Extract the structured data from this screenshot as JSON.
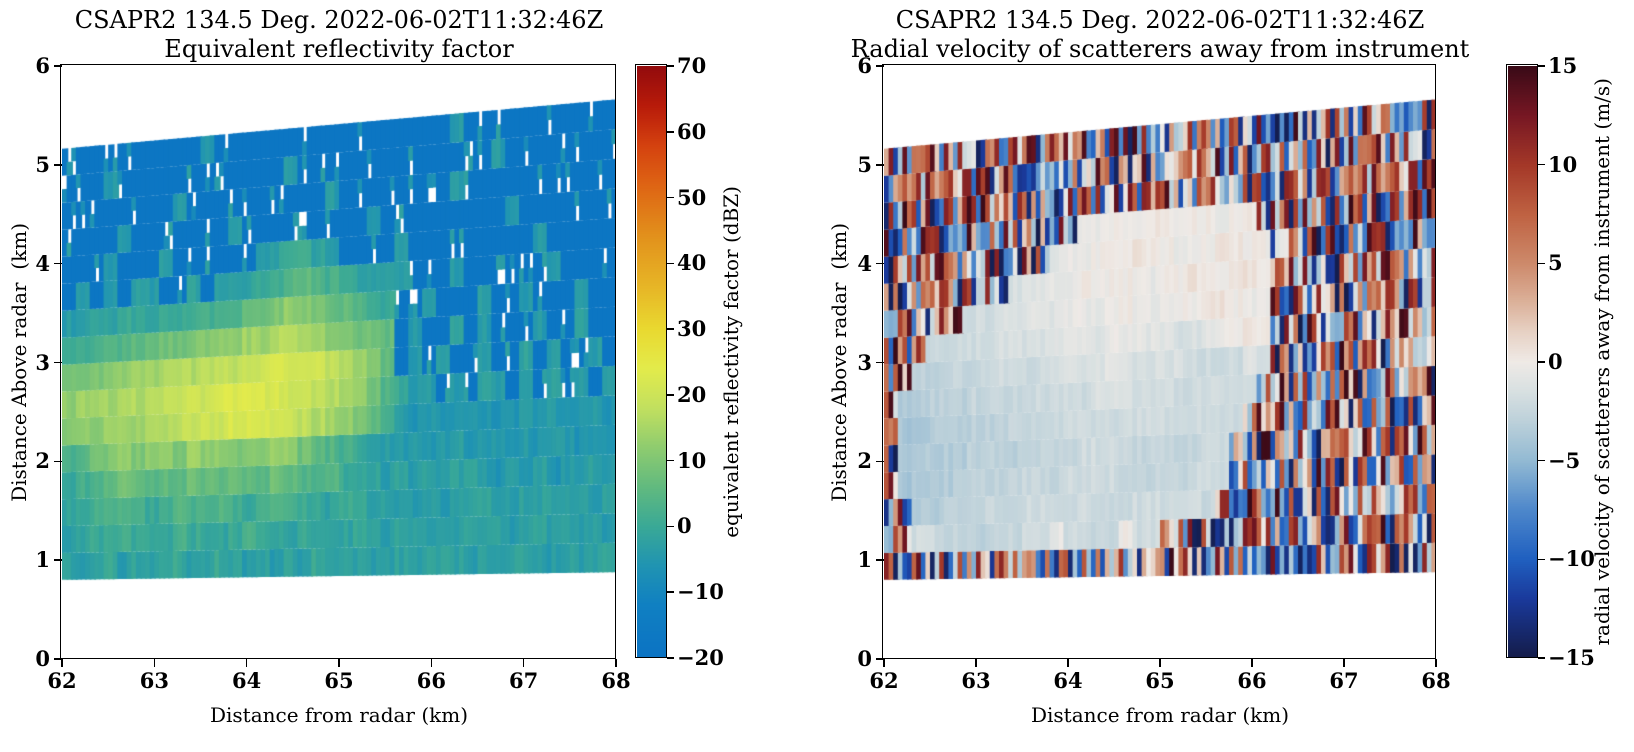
{
  "page": {
    "background": "#ffffff"
  },
  "chart_data": [
    {
      "type": "heatmap",
      "id": "reflectivity",
      "title": "CSAPR2 134.5 Deg. 2022-06-02T11:32:46Z",
      "subtitle": "Equivalent reflectivity factor",
      "xlabel": "Distance from radar (km)",
      "ylabel": "Distance Above radar  (km)",
      "xlim": [
        62,
        68
      ],
      "ylim": [
        0,
        6
      ],
      "x_ticks": [
        62,
        63,
        64,
        65,
        66,
        67,
        68
      ],
      "y_ticks": [
        0,
        1,
        2,
        3,
        4,
        5,
        6
      ],
      "grid": false,
      "colorbar": {
        "label": "equivalent reflectivity factor (dBZ)",
        "ticks": [
          70,
          60,
          50,
          40,
          30,
          20,
          10,
          0,
          -10,
          -20
        ],
        "vmin": -20,
        "vmax": 70
      },
      "colormap_stops": [
        [
          -20,
          "#0b73c3"
        ],
        [
          -12,
          "#1080c2"
        ],
        [
          -6,
          "#2094b2"
        ],
        [
          0,
          "#3aa996"
        ],
        [
          6,
          "#62ba7f"
        ],
        [
          12,
          "#8fcc6f"
        ],
        [
          18,
          "#c2e05f"
        ],
        [
          24,
          "#e3eb4b"
        ],
        [
          30,
          "#e9d930"
        ],
        [
          36,
          "#e7b827"
        ],
        [
          44,
          "#e2921c"
        ],
        [
          52,
          "#de6414"
        ],
        [
          58,
          "#d4420f"
        ],
        [
          64,
          "#b81b0a"
        ],
        [
          70,
          "#930b0d"
        ]
      ],
      "geometry": {
        "elevation_deg": [
          0.74,
          4.76
        ],
        "range_km": [
          62,
          68
        ],
        "gate_km": 0.05,
        "columns": 40,
        "bands": 16
      },
      "rows_bottom_to_top": true,
      "background_value": -18,
      "speckle": {
        "probability": 0.13,
        "range": [
          -9,
          -2
        ]
      },
      "jitter": 1.8,
      "value_map": {
        "0": -18,
        "a": -8,
        "b": -6,
        "c": -4,
        "d": -2,
        "e": 0,
        "f": 2,
        "g": 4,
        "h": 6,
        "i": 8,
        "j": 10,
        "k": 12,
        "l": 14,
        "m": 16,
        "n": 18,
        "o": 20,
        "p": 22,
        "q": 24
      },
      "field": [
        "dcdecdddecdedcdcdcedddccdcdddcdcddccdcdd",
        "cdeefeedfeedefeedeeddedcddcdcdddcddcdcdc",
        "deffgfefgffgfefgfeedeeddccdcdddccdddcdcd",
        "efghihghhihhihgihgfgeedcdcdcddcbdcdbccdc",
        "fgijkjkljlkkjkjlkihgfedcccbcdbccbcbccbcb",
        "jkklllmmnnoopppoonmlkjhfcbcbbcbbbcbcbbcb",
        "klllmmmnnooppqppoonmlkigecc0c0dc0c0d0c0d",
        "ijjkkllmmmnnnooppoonmljh0c0d00c00d0c00c0",
        "effgghhiijjkkllmnmlkjiih0c00d0c000c00d00",
        "ccddeedeefffghijkjihhgfe00c000d00c000c00",
        "0c0c0dc00d0cddefghgfedcdc000c000000c0000",
        "000c000c000000cdeedc0000c000000000c00000",
        "0000c0000000c000000000c000000000c0000000",
        "00000000c0000000000c00000000c00000000000",
        "000c000000000000c00000000000000c00000000",
        "0000000000c00000000000000000c00000000000"
      ]
    },
    {
      "type": "heatmap",
      "id": "radial_velocity",
      "title": "CSAPR2 134.5 Deg. 2022-06-02T11:32:46Z",
      "subtitle": "Radial velocity of scatterers away from instrument",
      "xlabel": "Distance from radar (km)",
      "ylabel": "Distance Above radar  (km)",
      "xlim": [
        62,
        68
      ],
      "ylim": [
        0,
        6
      ],
      "x_ticks": [
        62,
        63,
        64,
        65,
        66,
        67,
        68
      ],
      "y_ticks": [
        0,
        1,
        2,
        3,
        4,
        5,
        6
      ],
      "grid": false,
      "colorbar": {
        "label": "radial velocity of scatterers away from instrument (m/s)",
        "ticks": [
          15,
          10,
          5,
          0,
          -5,
          -10,
          -15
        ],
        "vmin": -15,
        "vmax": 15
      },
      "colormap_stops": [
        [
          -15,
          "#141c4a"
        ],
        [
          -12,
          "#1a3a9c"
        ],
        [
          -10,
          "#2060c0"
        ],
        [
          -7.5,
          "#4e88cb"
        ],
        [
          -5,
          "#93bad3"
        ],
        [
          -3,
          "#bdd1da"
        ],
        [
          -1.5,
          "#d8e0e1"
        ],
        [
          0,
          "#efeae6"
        ],
        [
          1.5,
          "#e7d2c5"
        ],
        [
          3,
          "#dcb29b"
        ],
        [
          5,
          "#cd8a6b"
        ],
        [
          7.5,
          "#bf6242"
        ],
        [
          10,
          "#a43828"
        ],
        [
          12.5,
          "#771723"
        ],
        [
          15,
          "#3a0a17"
        ]
      ],
      "geometry": {
        "elevation_deg": [
          0.74,
          4.76
        ],
        "range_km": [
          62,
          68
        ],
        "gate_km": 0.05,
        "columns": 40,
        "bands": 16
      },
      "rows_bottom_to_top": true,
      "noise_range": [
        -15,
        15
      ],
      "jitter": 0.5,
      "value_map": {
        "N": "noise",
        "0": -6,
        "1": -5.5,
        "2": -5,
        "3": -4.5,
        "4": -4,
        "5": -3.5,
        "6": -3,
        "7": -2.5,
        "8": -2,
        "9": -1.5,
        "A": -1,
        "B": -0.5,
        "C": 0,
        "D": 0.5,
        "E": 1
      },
      "field": [
        "NNNNNNNNNNNNNNNNNNNNNNNNNNNNNNNNNNNNNNNN",
        "NN8877667788B8877C88NNNNNNNNNNNNNNNNNNNN",
        "NN5566677788888777888887NNNNNNNNNNNNNNNN",
        "N455566667777888877777888NNNNNNNNNNNNNNN",
        "N445556666777788887777788NNNNNNNNNNNNNNN",
        "N4455566677778888888878888NNNNNNNNNNNNNN",
        "N55666777788888999888888888NNNNNNNNNNNNN",
        "NN66677788889999AA99998888A8NNNNNNNNNNNN",
        "NNN7788899999AAABBBAA99ABCDCNNNNNNNNNNNN",
        "NNNNNN8899AAABBBCCBBBCCDDCBCNNNNNNNNNNNN",
        "NNNNNNNNN9AABBCCCCBBCCDCCDDCNNNNNNNNNNNN",
        "NNNNNNNNNNNNABBCCCDCCBCCDDCCNNNNNNNNNNNN",
        "NNNNNNNNNNNNNNBBCCCDCCCCBCCNNNNNNNNNNNNN",
        "NNNNNNNNNNNNNNNNNNNNNNNNNNNNNNNNNNNNNNNN",
        "NNNNNNNNNNNNNNNNNNNNNNNNNNNNNNNNNNNNNNNN",
        "NNNNNNNNNNNNNNNNNNNNNNNNNNNNNNNNNNNNNNNN"
      ]
    }
  ]
}
